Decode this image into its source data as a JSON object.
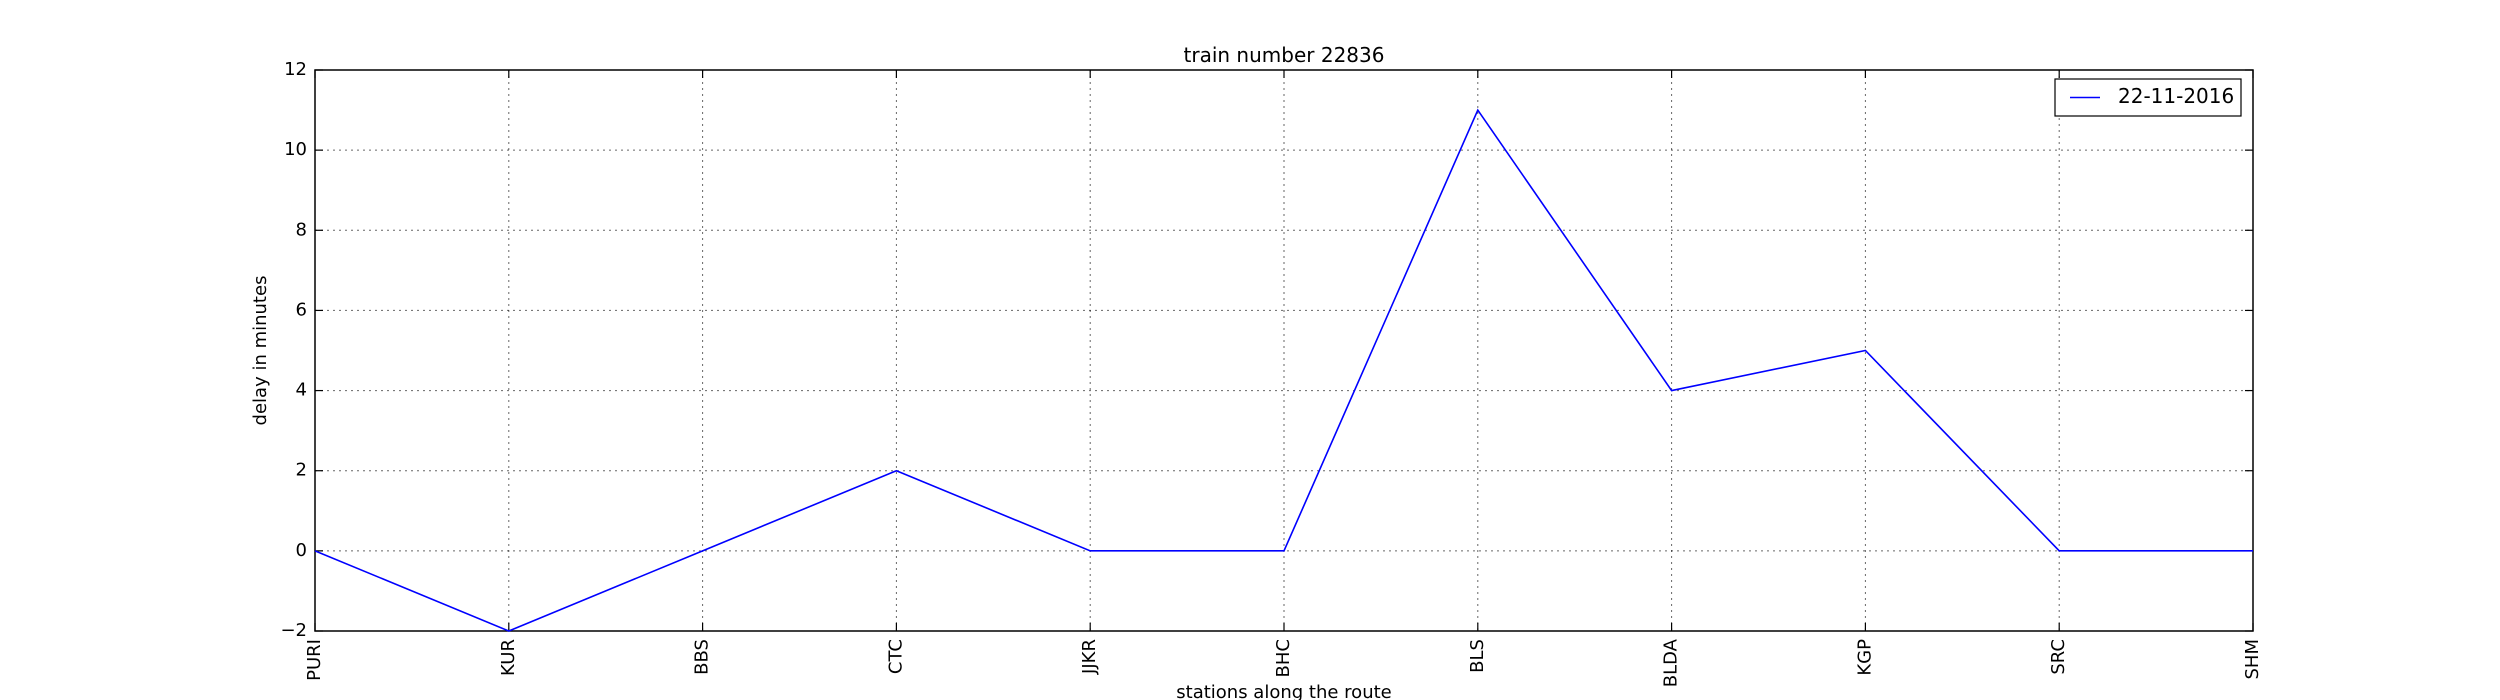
{
  "chart_data": {
    "type": "line",
    "title": "train number 22836",
    "xlabel": "stations along the route",
    "ylabel": "delay in minutes",
    "categories": [
      "PURI",
      "KUR",
      "BBS",
      "CTC",
      "JJKR",
      "BHC",
      "BLS",
      "BLDA",
      "KGP",
      "SRC",
      "SHM"
    ],
    "series": [
      {
        "name": "22-11-2016",
        "values": [
          0,
          -2,
          0,
          2,
          0,
          0,
          11,
          4,
          5,
          0,
          0
        ],
        "color": "#0000ff"
      }
    ],
    "ylim": [
      -2,
      12
    ],
    "yticks": [
      -2,
      0,
      2,
      4,
      6,
      8,
      10,
      12
    ],
    "grid": true,
    "legend_position": "top-right"
  }
}
